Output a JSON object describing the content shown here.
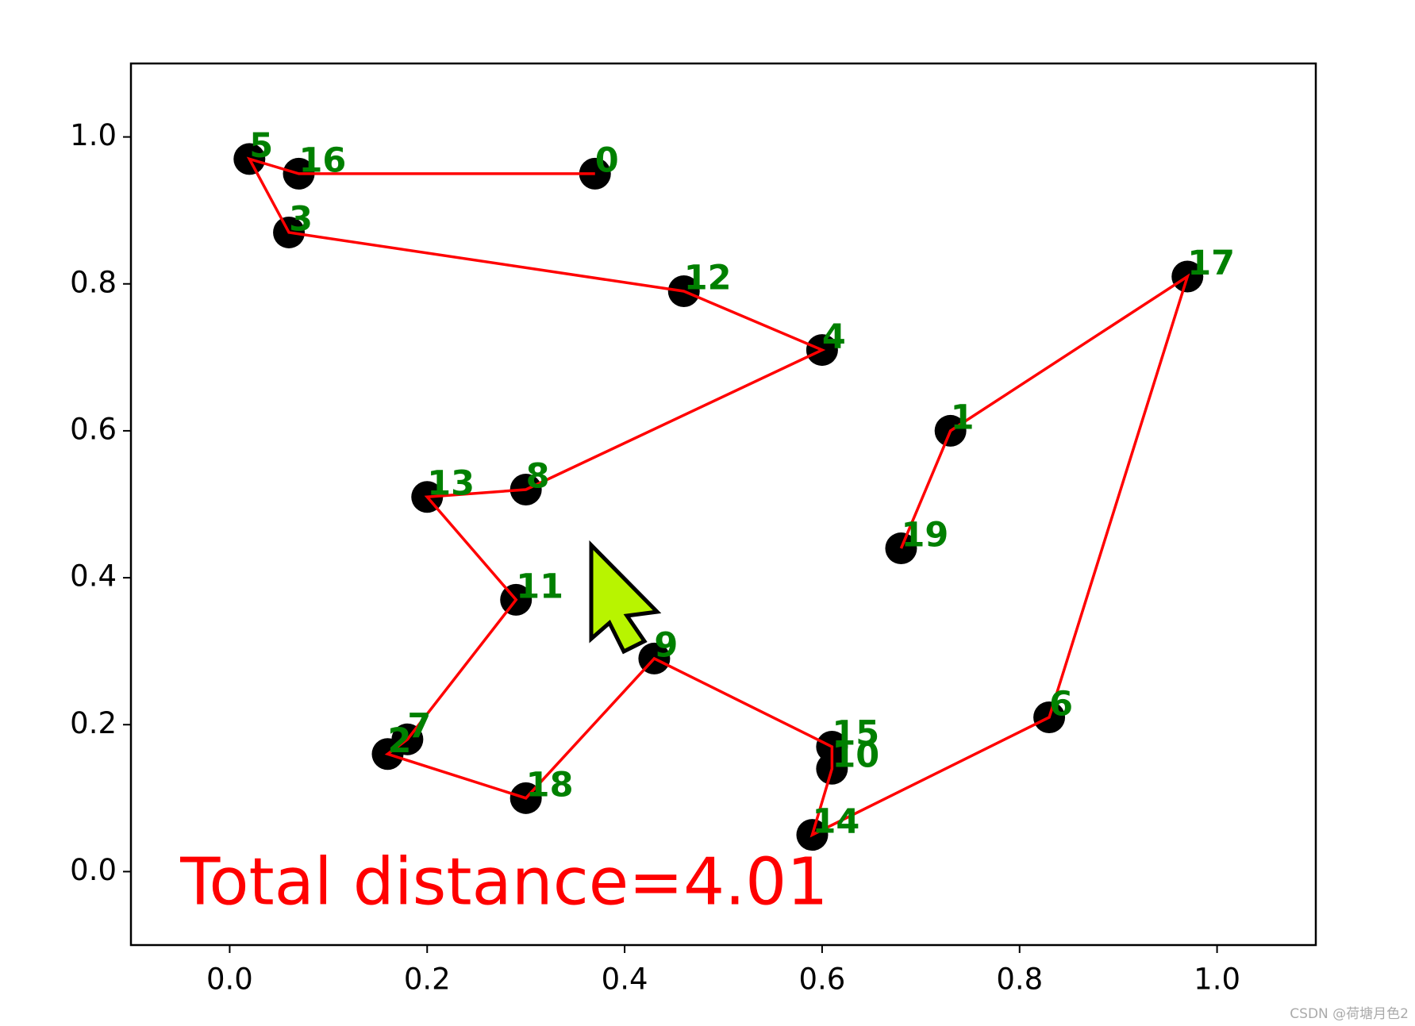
{
  "chart_data": {
    "type": "scatter",
    "labels": [
      "0",
      "1",
      "2",
      "3",
      "4",
      "5",
      "6",
      "7",
      "8",
      "9",
      "10",
      "11",
      "12",
      "13",
      "14",
      "15",
      "16",
      "17",
      "18",
      "19"
    ],
    "x": [
      0.37,
      0.73,
      0.16,
      0.06,
      0.6,
      0.02,
      0.83,
      0.18,
      0.3,
      0.43,
      0.61,
      0.29,
      0.46,
      0.2,
      0.59,
      0.61,
      0.07,
      0.97,
      0.3,
      0.68
    ],
    "values": [
      0.95,
      0.6,
      0.16,
      0.87,
      0.71,
      0.97,
      0.21,
      0.18,
      0.52,
      0.29,
      0.14,
      0.37,
      0.79,
      0.51,
      0.05,
      0.17,
      0.95,
      0.81,
      0.1,
      0.44
    ],
    "color": "#000000",
    "route": {
      "color": "#ff0000",
      "x": [
        0.37,
        0.07,
        0.02,
        0.06,
        0.46,
        0.6,
        0.3,
        0.2,
        0.29,
        0.18,
        0.16,
        0.3,
        0.43,
        0.61,
        0.61,
        0.59,
        0.83,
        0.97,
        0.73,
        0.68
      ],
      "values": [
        0.95,
        0.95,
        0.97,
        0.87,
        0.79,
        0.71,
        0.52,
        0.51,
        0.37,
        0.18,
        0.16,
        0.1,
        0.29,
        0.17,
        0.14,
        0.05,
        0.21,
        0.81,
        0.6,
        0.44
      ]
    },
    "label_color": "#008000",
    "annotation": "Total distance=4.01",
    "annotation_color": "#ff0000",
    "xlim": [
      -0.1,
      1.1
    ],
    "ylim": [
      -0.1,
      1.1
    ],
    "xticks": [
      {
        "value": 0,
        "label": "0.0"
      },
      {
        "value": 0.2,
        "label": "0.2"
      },
      {
        "value": 0.4,
        "label": "0.4"
      },
      {
        "value": 0.6,
        "label": "0.6"
      },
      {
        "value": 0.8,
        "label": "0.8"
      },
      {
        "value": 1,
        "label": "1.0"
      }
    ],
    "yticks": [
      {
        "value": 0,
        "label": "0.0"
      },
      {
        "value": 0.2,
        "label": "0.2"
      },
      {
        "value": 0.4,
        "label": "0.4"
      },
      {
        "value": 0.6,
        "label": "0.6"
      },
      {
        "value": 0.8,
        "label": "0.8"
      },
      {
        "value": 1,
        "label": "1.0"
      }
    ],
    "grid": false
  },
  "watermark": "CSDN @荷塘月色2"
}
